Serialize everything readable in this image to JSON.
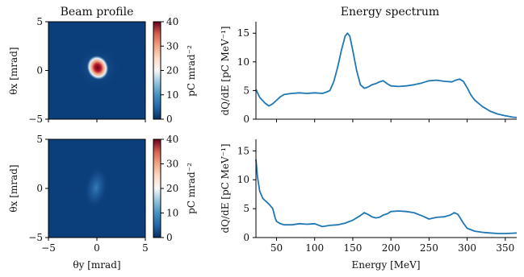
{
  "chart_data": [
    {
      "type": "heatmap",
      "title": "Beam profile",
      "xlabel": "",
      "ylabel": "θx [mrad]",
      "xlim": [
        -5,
        5
      ],
      "ylim": [
        -5,
        5
      ],
      "xticks": [
        "−5",
        "0",
        "5"
      ],
      "yticks": [
        "5",
        "0",
        "−5"
      ],
      "colorbar": {
        "label": "pC mrad⁻²",
        "range": [
          0,
          40
        ],
        "ticks": [
          "40",
          "30",
          "20",
          "10",
          "0"
        ],
        "colormap": "RdBu_r"
      },
      "features": [
        {
          "x": 0.0,
          "y": 0.3,
          "peak": 38,
          "sigma_x": 0.45,
          "sigma_y": 0.6
        },
        {
          "x": 0.0,
          "y": 0.0,
          "peak": 14,
          "sigma_x": 1.2,
          "sigma_y": 1.2
        }
      ]
    },
    {
      "type": "heatmap",
      "title": "",
      "xlabel": "θy [mrad]",
      "ylabel": "θx [mrad]",
      "xlim": [
        -5,
        5
      ],
      "ylim": [
        -5,
        5
      ],
      "xticks": [
        "−5",
        "0",
        "5"
      ],
      "yticks": [
        "5",
        "0",
        "−5"
      ],
      "colorbar": {
        "label": "pC mrad⁻²",
        "range": [
          0,
          40
        ],
        "ticks": [
          "40",
          "30",
          "20",
          "10",
          "0"
        ],
        "colormap": "RdBu_r"
      },
      "features": [
        {
          "x": 0.0,
          "y": 0.0,
          "peak": 9,
          "sigma_x": 0.9,
          "sigma_y": 1.6
        }
      ]
    },
    {
      "type": "line",
      "title": "Energy spectrum",
      "xlabel": "",
      "ylabel": "dQ/dE [pC MeV⁻¹]",
      "xlim": [
        23,
        365
      ],
      "ylim": [
        0,
        17
      ],
      "xticks": [
        50,
        100,
        150,
        200,
        250,
        300,
        350
      ],
      "yticks": [
        0,
        5,
        10,
        15
      ],
      "series": [
        {
          "x": [
            23,
            28,
            35,
            40,
            45,
            50,
            55,
            60,
            70,
            80,
            90,
            100,
            110,
            115,
            120,
            125,
            130,
            135,
            140,
            143,
            146,
            150,
            155,
            160,
            165,
            170,
            175,
            180,
            185,
            190,
            195,
            200,
            210,
            220,
            230,
            240,
            250,
            260,
            270,
            280,
            285,
            290,
            295,
            300,
            305,
            310,
            320,
            330,
            340,
            350,
            360,
            365
          ],
          "y": [
            5.2,
            3.8,
            2.8,
            2.3,
            2.7,
            3.3,
            3.9,
            4.3,
            4.5,
            4.6,
            4.5,
            4.6,
            4.5,
            4.7,
            5.0,
            6.5,
            9.0,
            12.0,
            14.5,
            15.0,
            14.5,
            12.0,
            8.5,
            6.0,
            5.4,
            5.6,
            6.0,
            6.2,
            6.5,
            6.7,
            6.2,
            5.8,
            5.7,
            5.8,
            6.0,
            6.3,
            6.7,
            6.8,
            6.6,
            6.5,
            6.8,
            7.0,
            6.6,
            5.5,
            4.2,
            3.3,
            2.2,
            1.4,
            0.9,
            0.6,
            0.35,
            0.3
          ]
        }
      ]
    },
    {
      "type": "line",
      "title": "",
      "xlabel": "Energy [MeV]",
      "ylabel": "dQ/dE [pC MeV⁻¹]",
      "xlim": [
        23,
        365
      ],
      "ylim": [
        0,
        17
      ],
      "xticks": [
        50,
        100,
        150,
        200,
        250,
        300,
        350
      ],
      "yticks": [
        0,
        5,
        10,
        15
      ],
      "series": [
        {
          "x": [
            23,
            25,
            28,
            32,
            35,
            40,
            45,
            48,
            50,
            55,
            60,
            70,
            80,
            90,
            100,
            110,
            120,
            130,
            140,
            150,
            160,
            165,
            170,
            175,
            180,
            185,
            190,
            195,
            200,
            210,
            220,
            230,
            240,
            250,
            260,
            270,
            278,
            283,
            288,
            295,
            300,
            310,
            320,
            330,
            340,
            350,
            360,
            365
          ],
          "y": [
            13.5,
            10.5,
            8.0,
            6.8,
            6.4,
            5.8,
            5.0,
            3.5,
            2.8,
            2.4,
            2.2,
            2.2,
            2.4,
            2.3,
            2.4,
            1.9,
            2.1,
            2.2,
            2.5,
            3.0,
            3.8,
            4.3,
            4.0,
            3.6,
            3.4,
            3.5,
            3.9,
            4.1,
            4.5,
            4.6,
            4.5,
            4.3,
            3.8,
            3.2,
            3.5,
            3.6,
            3.9,
            4.3,
            4.0,
            2.5,
            1.6,
            1.1,
            0.9,
            0.8,
            0.7,
            0.7,
            0.75,
            0.8
          ]
        }
      ]
    }
  ]
}
